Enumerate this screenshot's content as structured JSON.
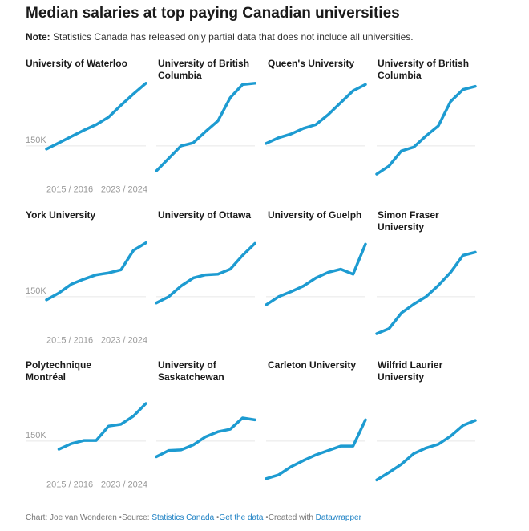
{
  "title": "Median salaries at top paying Canadian universities",
  "note_label": "Note:",
  "note": "Statistics Canada has released only partial data that does not include all universities.",
  "footer": {
    "credit": "Chart: Joe van Wonderen",
    "source_label": "Source:",
    "source": "Statistics Canada",
    "get_data": "Get the data",
    "created_with": "Created with",
    "tool": "Datawrapper"
  },
  "chart_data": [
    {
      "type": "line",
      "title": "University of Waterloo",
      "color": "#1d9bd1",
      "categories": [
        "2015 / 2016",
        null,
        null,
        null,
        null,
        null,
        null,
        null,
        "2023 / 2024"
      ],
      "values": [
        147500,
        152500,
        157500,
        162500,
        167000,
        173000,
        182500,
        191500,
        200000
      ],
      "ylim": [
        115000,
        205000
      ],
      "yticks": [
        {
          "value": 150000,
          "label": "150K"
        }
      ],
      "grid": true
    },
    {
      "type": "line",
      "title": "University of British Columbia",
      "color": "#1d9bd1",
      "values": [
        130000,
        140000,
        150000,
        152500,
        161500,
        170000,
        188500,
        199000,
        200000
      ],
      "ylim": [
        115000,
        205000
      ],
      "yticks": [
        150000
      ],
      "grid": true
    },
    {
      "type": "line",
      "title": "Queen's University",
      "color": "#1d9bd1",
      "values": [
        152000,
        156500,
        159500,
        164000,
        167000,
        175000,
        184500,
        194000,
        199000
      ],
      "ylim": [
        115000,
        205000
      ],
      "yticks": [
        150000
      ],
      "grid": true
    },
    {
      "type": "line",
      "title": "University of British Columbia",
      "color": "#1d9bd1",
      "values": [
        127500,
        134000,
        146000,
        149000,
        158000,
        166000,
        185500,
        195000,
        197500
      ],
      "ylim": [
        115000,
        205000
      ],
      "yticks": [
        150000
      ],
      "grid": true
    },
    {
      "type": "line",
      "title": "York University",
      "color": "#1d9bd1",
      "categories": [
        "2015 / 2016",
        null,
        null,
        null,
        null,
        null,
        null,
        null,
        "2023 / 2024"
      ],
      "values": [
        147500,
        153000,
        160000,
        164000,
        167500,
        169000,
        171500,
        187000,
        193000
      ],
      "ylim": [
        115000,
        205000
      ],
      "yticks": [
        {
          "value": 150000,
          "label": "150K"
        }
      ],
      "grid": true
    },
    {
      "type": "line",
      "title": "University of Ottawa",
      "color": "#1d9bd1",
      "values": [
        145000,
        150000,
        158500,
        165000,
        167500,
        168000,
        172000,
        183000,
        192500
      ],
      "ylim": [
        115000,
        205000
      ],
      "yticks": [
        150000
      ],
      "grid": true
    },
    {
      "type": "line",
      "title": "University of Guelph",
      "color": "#1d9bd1",
      "values": [
        143500,
        150000,
        154000,
        158500,
        165000,
        169500,
        172000,
        168000,
        192000
      ],
      "ylim": [
        115000,
        205000
      ],
      "yticks": [
        150000
      ],
      "grid": true
    },
    {
      "type": "line",
      "title": "Simon Fraser University",
      "color": "#1d9bd1",
      "values": [
        120500,
        124500,
        137000,
        144000,
        150000,
        159000,
        169500,
        183000,
        185500
      ],
      "ylim": [
        115000,
        205000
      ],
      "yticks": [
        150000
      ],
      "grid": true
    },
    {
      "type": "line",
      "title": "Polytechnique Montréal",
      "color": "#1d9bd1",
      "categories": [
        "2015 / 2016",
        null,
        null,
        null,
        null,
        null,
        null,
        null,
        "2023 / 2024"
      ],
      "values": [
        null,
        143500,
        148000,
        150500,
        150500,
        162000,
        163500,
        170000,
        180000
      ],
      "ylim": [
        115000,
        205000
      ],
      "yticks": [
        {
          "value": 150000,
          "label": "150K"
        }
      ],
      "grid": true
    },
    {
      "type": "line",
      "title": "University of Saskatchewan",
      "color": "#1d9bd1",
      "values": [
        137500,
        142500,
        143000,
        147000,
        153500,
        157500,
        159500,
        168500,
        167000
      ],
      "ylim": [
        115000,
        205000
      ],
      "yticks": [
        150000
      ],
      "grid": true
    },
    {
      "type": "line",
      "title": "Carleton University",
      "color": "#1d9bd1",
      "values": [
        120000,
        123000,
        129500,
        134500,
        139000,
        142500,
        146000,
        146000,
        167000
      ],
      "ylim": [
        115000,
        205000
      ],
      "yticks": [
        150000
      ],
      "grid": true
    },
    {
      "type": "line",
      "title": "Wilfrid Laurier University",
      "color": "#1d9bd1",
      "values": [
        119000,
        125000,
        131500,
        140000,
        144500,
        147500,
        154000,
        162500,
        166500
      ],
      "ylim": [
        115000,
        205000
      ],
      "yticks": [
        150000
      ],
      "grid": true
    }
  ]
}
